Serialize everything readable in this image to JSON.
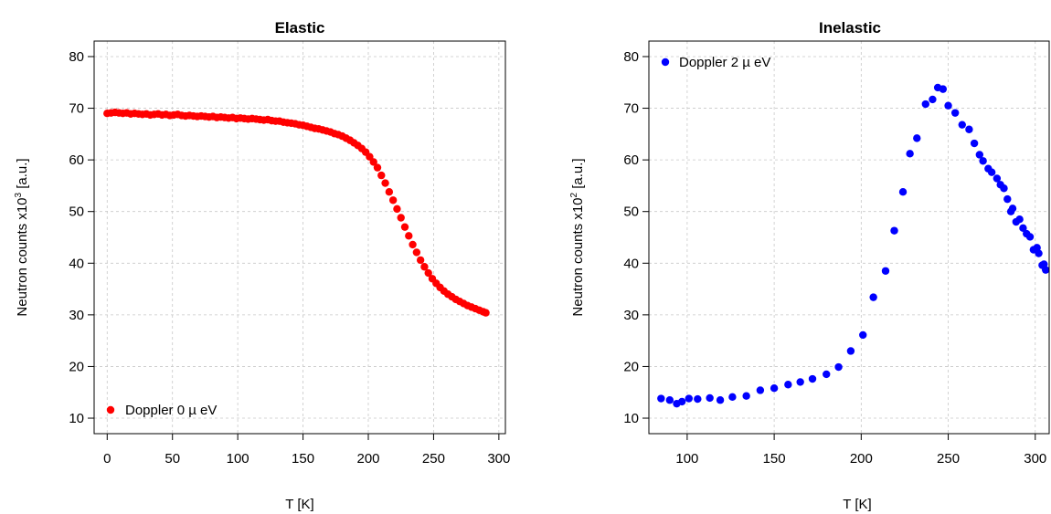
{
  "chart_data": [
    {
      "type": "scatter",
      "title": "Elastic",
      "xlabel": "T [K]",
      "ylabel_main": "Neutron counts x10",
      "ylabel_exp": "3",
      "ylabel_unit": " [a.u.]",
      "xlim": [
        -10,
        305
      ],
      "ylim": [
        7,
        83
      ],
      "xticks": [
        0,
        50,
        100,
        150,
        200,
        250,
        300
      ],
      "yticks": [
        10,
        20,
        30,
        40,
        50,
        60,
        70,
        80
      ],
      "grid": true,
      "legend_position": "bottom-left",
      "color": "#ff0000",
      "series": [
        {
          "name": "Doppler 0  µ eV",
          "x": [
            0,
            3,
            6,
            9,
            12,
            15,
            18,
            21,
            24,
            27,
            30,
            33,
            36,
            39,
            42,
            45,
            48,
            51,
            54,
            57,
            60,
            63,
            66,
            69,
            72,
            75,
            78,
            81,
            84,
            87,
            90,
            93,
            96,
            99,
            102,
            105,
            108,
            111,
            114,
            117,
            120,
            123,
            126,
            129,
            132,
            135,
            138,
            141,
            144,
            147,
            150,
            153,
            156,
            159,
            162,
            165,
            168,
            171,
            174,
            177,
            180,
            183,
            186,
            189,
            192,
            195,
            198,
            201,
            204,
            207,
            210,
            213,
            216,
            219,
            222,
            225,
            228,
            231,
            234,
            237,
            240,
            243,
            246,
            249,
            252,
            255,
            258,
            261,
            264,
            267,
            270,
            273,
            276,
            279,
            282,
            285,
            288,
            290
          ],
          "y": [
            69.0,
            69.1,
            69.2,
            69.1,
            69.0,
            69.1,
            68.9,
            69.0,
            68.9,
            68.8,
            68.9,
            68.7,
            68.8,
            68.9,
            68.7,
            68.8,
            68.6,
            68.7,
            68.8,
            68.6,
            68.5,
            68.6,
            68.5,
            68.4,
            68.5,
            68.4,
            68.3,
            68.4,
            68.2,
            68.3,
            68.2,
            68.1,
            68.2,
            68.0,
            68.1,
            68.0,
            67.9,
            68.0,
            67.9,
            67.8,
            67.7,
            67.8,
            67.6,
            67.5,
            67.5,
            67.3,
            67.2,
            67.1,
            67.0,
            66.8,
            66.7,
            66.5,
            66.3,
            66.1,
            66.0,
            65.8,
            65.6,
            65.4,
            65.1,
            64.9,
            64.6,
            64.2,
            63.8,
            63.3,
            62.8,
            62.2,
            61.5,
            60.6,
            59.6,
            58.5,
            57.0,
            55.5,
            53.8,
            52.2,
            50.5,
            48.8,
            47.0,
            45.3,
            43.6,
            42.1,
            40.6,
            39.3,
            38.1,
            37.0,
            36.1,
            35.3,
            34.6,
            34.0,
            33.5,
            33.0,
            32.6,
            32.2,
            31.8,
            31.5,
            31.2,
            30.9,
            30.6,
            30.4
          ]
        }
      ]
    },
    {
      "type": "scatter",
      "title": "Inelastic",
      "xlabel": "T [K]",
      "ylabel_main": "Neutron counts x10",
      "ylabel_exp": "2",
      "ylabel_unit": " [a.u.]",
      "xlim": [
        78,
        308
      ],
      "ylim": [
        7,
        83
      ],
      "xticks": [
        100,
        150,
        200,
        250,
        300
      ],
      "yticks": [
        10,
        20,
        30,
        40,
        50,
        60,
        70,
        80
      ],
      "grid": true,
      "legend_position": "top-left",
      "color": "#0000ff",
      "series": [
        {
          "name": "Doppler 2  µ eV",
          "x": [
            85,
            90,
            94,
            97,
            101,
            106,
            113,
            119,
            126,
            134,
            142,
            150,
            158,
            165,
            172,
            180,
            187,
            194,
            201,
            207,
            214,
            219,
            224,
            228,
            232,
            237,
            241,
            244,
            247,
            250,
            254,
            258,
            262,
            265,
            268,
            270,
            273,
            275,
            278,
            280,
            282,
            284,
            286,
            287,
            289,
            291,
            293,
            295,
            297,
            299,
            301,
            302,
            304,
            305,
            306
          ],
          "y": [
            13.8,
            13.5,
            12.8,
            13.2,
            13.8,
            13.7,
            13.9,
            13.5,
            14.1,
            14.3,
            15.4,
            15.8,
            16.5,
            17.0,
            17.6,
            18.5,
            19.9,
            23.0,
            26.1,
            33.4,
            38.5,
            46.3,
            53.8,
            61.2,
            64.2,
            70.8,
            71.7,
            74.0,
            73.7,
            70.5,
            69.1,
            66.8,
            65.9,
            63.2,
            61.0,
            59.8,
            58.3,
            57.6,
            56.4,
            55.2,
            54.5,
            52.4,
            50.0,
            50.6,
            48.0,
            48.5,
            46.8,
            45.7,
            45.1,
            42.6,
            43.0,
            41.9,
            39.6,
            39.8,
            38.7
          ]
        }
      ]
    }
  ]
}
